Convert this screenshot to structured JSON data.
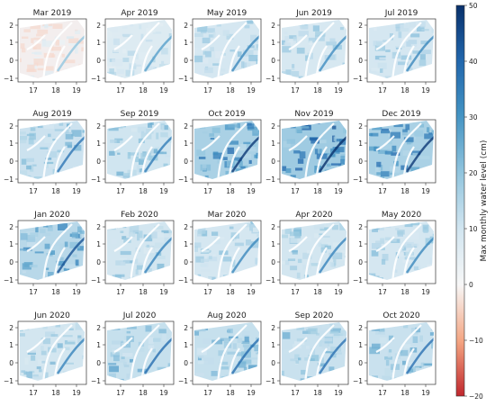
{
  "chart_data": {
    "type": "heatmap",
    "layout": {
      "rows": 4,
      "cols": 5
    },
    "panels": [
      {
        "title": "Mar 2019"
      },
      {
        "title": "Apr 2019"
      },
      {
        "title": "May 2019"
      },
      {
        "title": "Jun 2019"
      },
      {
        "title": "Jul 2019"
      },
      {
        "title": "Aug 2019"
      },
      {
        "title": "Sep 2019"
      },
      {
        "title": "Oct 2019"
      },
      {
        "title": "Nov 2019"
      },
      {
        "title": "Dec 2019"
      },
      {
        "title": "Jan 2020"
      },
      {
        "title": "Feb 2020"
      },
      {
        "title": "Mar 2020"
      },
      {
        "title": "Apr 2020"
      },
      {
        "title": "May 2020"
      },
      {
        "title": "Jun 2020"
      },
      {
        "title": "Jul 2020"
      },
      {
        "title": "Aug 2020"
      },
      {
        "title": "Sep 2020"
      },
      {
        "title": "Oct 2020"
      }
    ],
    "x_ticks": [
      "17",
      "18",
      "19"
    ],
    "y_ticks": [
      "2",
      "1",
      "0",
      "−1"
    ],
    "colorbar": {
      "label": "Max monthly water level (cm)",
      "min": -20,
      "max": 50,
      "ticks": [
        "50",
        "40",
        "30",
        "20",
        "10",
        "0",
        "−10",
        "−20"
      ],
      "colormap": "red-white-blue (diverging, centered at 0)",
      "colors": {
        "neg": "#c0272d",
        "zero": "#f7f7f7",
        "pos": "#08306b"
      }
    }
  }
}
